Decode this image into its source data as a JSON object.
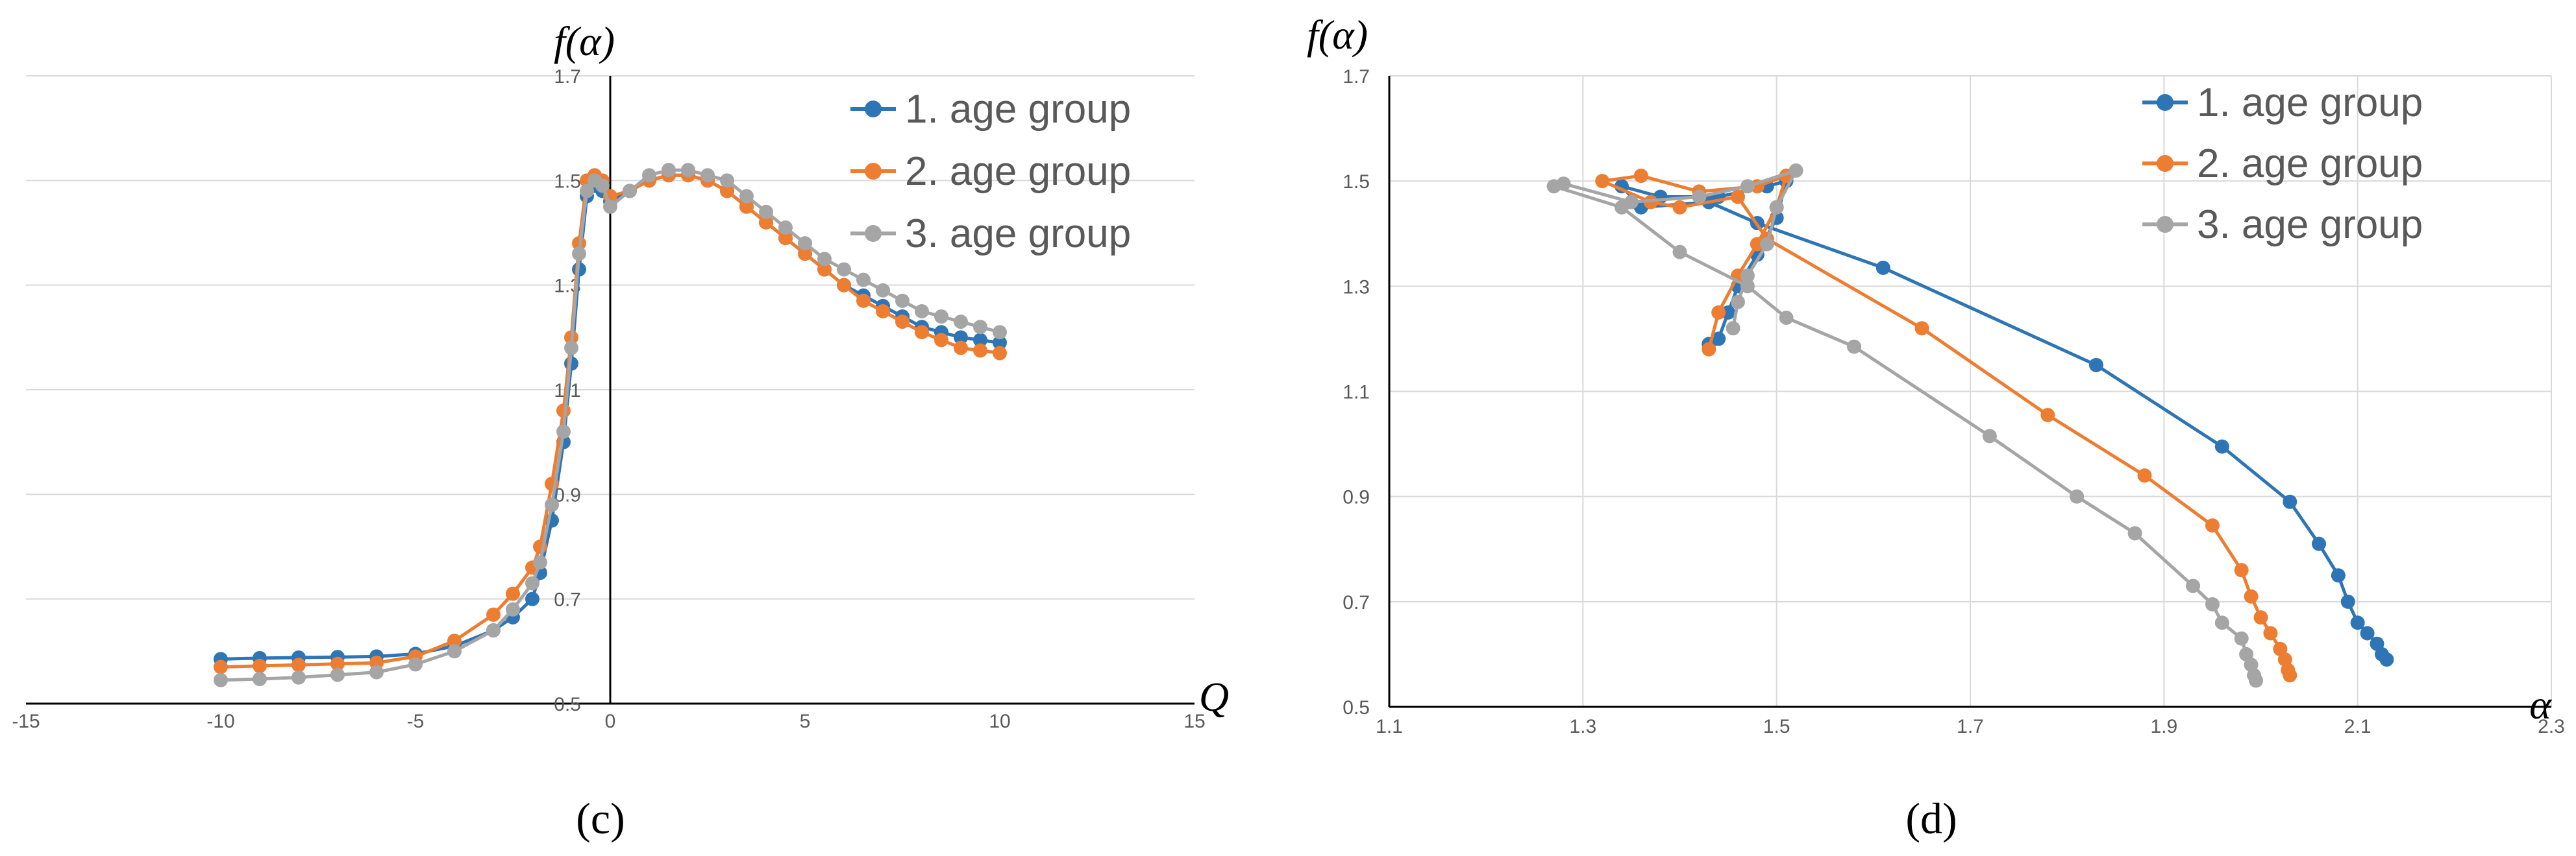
{
  "chart_data": [
    {
      "type": "line",
      "panel_label": "(c)",
      "xlabel": "Q",
      "ylabel": "f(α)",
      "xlim": [
        -15,
        15
      ],
      "ylim": [
        0.5,
        1.7
      ],
      "xticks": [
        "-15",
        "-10",
        "-5",
        "0",
        "5",
        "10",
        "15"
      ],
      "yticks": [
        "0.5",
        "0.7",
        "0.9",
        "1.1",
        "1.3",
        "1.5",
        "1.7"
      ],
      "grid": true,
      "legend_position": "top-right",
      "series": [
        {
          "name": "1. age group",
          "color": "#2E75B6",
          "x": [
            -10,
            -9,
            -8,
            -7,
            -6,
            -5,
            -4,
            -3,
            -2.5,
            -2,
            -1.8,
            -1.5,
            -1.2,
            -1,
            -0.8,
            -0.6,
            -0.4,
            -0.2,
            0,
            0.5,
            1,
            1.5,
            2,
            2.5,
            3,
            3.5,
            4,
            4.5,
            5,
            5.5,
            6,
            6.5,
            7,
            7.5,
            8,
            8.5,
            9,
            9.5,
            10
          ],
          "y": [
            0.585,
            0.587,
            0.588,
            0.589,
            0.59,
            0.595,
            0.61,
            0.64,
            0.665,
            0.7,
            0.75,
            0.85,
            1.0,
            1.15,
            1.33,
            1.47,
            1.49,
            1.48,
            1.46,
            1.48,
            1.5,
            1.51,
            1.51,
            1.5,
            1.48,
            1.45,
            1.42,
            1.39,
            1.36,
            1.33,
            1.3,
            1.28,
            1.26,
            1.24,
            1.22,
            1.21,
            1.2,
            1.195,
            1.19
          ]
        },
        {
          "name": "2. age group",
          "color": "#ED7D31",
          "x": [
            -10,
            -9,
            -8,
            -7,
            -6,
            -5,
            -4,
            -3,
            -2.5,
            -2,
            -1.8,
            -1.5,
            -1.2,
            -1,
            -0.8,
            -0.6,
            -0.4,
            -0.2,
            0,
            0.5,
            1,
            1.5,
            2,
            2.5,
            3,
            3.5,
            4,
            4.5,
            5,
            5.5,
            6,
            6.5,
            7,
            7.5,
            8,
            8.5,
            9,
            9.5,
            10
          ],
          "y": [
            0.57,
            0.572,
            0.574,
            0.576,
            0.578,
            0.59,
            0.62,
            0.67,
            0.71,
            0.76,
            0.8,
            0.92,
            1.06,
            1.2,
            1.38,
            1.5,
            1.51,
            1.5,
            1.47,
            1.48,
            1.5,
            1.51,
            1.51,
            1.5,
            1.48,
            1.45,
            1.42,
            1.39,
            1.36,
            1.33,
            1.3,
            1.27,
            1.25,
            1.23,
            1.21,
            1.195,
            1.18,
            1.175,
            1.17
          ]
        },
        {
          "name": "3. age group",
          "color": "#A5A5A5",
          "x": [
            -10,
            -9,
            -8,
            -7,
            -6,
            -5,
            -4,
            -3,
            -2.5,
            -2,
            -1.8,
            -1.5,
            -1.2,
            -1,
            -0.8,
            -0.6,
            -0.4,
            -0.2,
            0,
            0.5,
            1,
            1.5,
            2,
            2.5,
            3,
            3.5,
            4,
            4.5,
            5,
            5.5,
            6,
            6.5,
            7,
            7.5,
            8,
            8.5,
            9,
            9.5,
            10
          ],
          "y": [
            0.545,
            0.547,
            0.55,
            0.555,
            0.56,
            0.575,
            0.6,
            0.64,
            0.68,
            0.73,
            0.77,
            0.88,
            1.02,
            1.18,
            1.36,
            1.48,
            1.5,
            1.49,
            1.45,
            1.48,
            1.51,
            1.52,
            1.52,
            1.51,
            1.5,
            1.47,
            1.44,
            1.41,
            1.38,
            1.35,
            1.33,
            1.31,
            1.29,
            1.27,
            1.25,
            1.24,
            1.23,
            1.22,
            1.21
          ]
        }
      ]
    },
    {
      "type": "line",
      "panel_label": "(d)",
      "xlabel": "α",
      "ylabel": "f(α)",
      "xlim": [
        1.1,
        2.3
      ],
      "ylim": [
        0.5,
        1.7
      ],
      "xticks": [
        "1.1",
        "1.3",
        "1.5",
        "1.7",
        "1.9",
        "2.1",
        "2.3"
      ],
      "yticks": [
        "0.5",
        "0.7",
        "0.9",
        "1.1",
        "1.3",
        "1.5",
        "1.7"
      ],
      "grid": true,
      "legend_position": "top-right",
      "series": [
        {
          "name": "1. age group",
          "color": "#2E75B6",
          "x": [
            2.13,
            2.125,
            2.12,
            2.11,
            2.1,
            2.09,
            2.08,
            2.06,
            2.03,
            1.96,
            1.83,
            1.61,
            1.48,
            1.43,
            1.36,
            1.34,
            1.38,
            1.44,
            1.49,
            1.51,
            1.5,
            1.48,
            1.46,
            1.45,
            1.44,
            1.43
          ],
          "y": [
            0.59,
            0.6,
            0.62,
            0.64,
            0.66,
            0.7,
            0.75,
            0.81,
            0.89,
            0.995,
            1.15,
            1.335,
            1.42,
            1.46,
            1.45,
            1.49,
            1.47,
            1.47,
            1.49,
            1.5,
            1.43,
            1.36,
            1.3,
            1.25,
            1.2,
            1.19
          ]
        },
        {
          "name": "2. age group",
          "color": "#ED7D31",
          "x": [
            2.03,
            2.028,
            2.025,
            2.02,
            2.01,
            2.0,
            1.99,
            1.98,
            1.95,
            1.88,
            1.78,
            1.65,
            1.49,
            1.46,
            1.4,
            1.37,
            1.32,
            1.36,
            1.42,
            1.48,
            1.51,
            1.5,
            1.48,
            1.46,
            1.44,
            1.43
          ],
          "y": [
            0.56,
            0.57,
            0.59,
            0.61,
            0.64,
            0.67,
            0.71,
            0.76,
            0.845,
            0.94,
            1.055,
            1.22,
            1.39,
            1.47,
            1.45,
            1.46,
            1.5,
            1.51,
            1.48,
            1.49,
            1.51,
            1.45,
            1.38,
            1.32,
            1.25,
            1.18
          ]
        },
        {
          "name": "3. age group",
          "color": "#A5A5A5",
          "x": [
            1.995,
            1.993,
            1.99,
            1.985,
            1.98,
            1.96,
            1.95,
            1.93,
            1.87,
            1.81,
            1.72,
            1.58,
            1.51,
            1.47,
            1.4,
            1.34,
            1.27,
            1.28,
            1.35,
            1.42,
            1.47,
            1.52,
            1.5,
            1.49,
            1.47,
            1.46,
            1.455
          ],
          "y": [
            0.55,
            0.56,
            0.58,
            0.6,
            0.63,
            0.66,
            0.695,
            0.73,
            0.83,
            0.9,
            1.015,
            1.185,
            1.24,
            1.3,
            1.365,
            1.45,
            1.49,
            1.495,
            1.46,
            1.47,
            1.49,
            1.52,
            1.45,
            1.38,
            1.32,
            1.27,
            1.22
          ]
        }
      ]
    }
  ]
}
